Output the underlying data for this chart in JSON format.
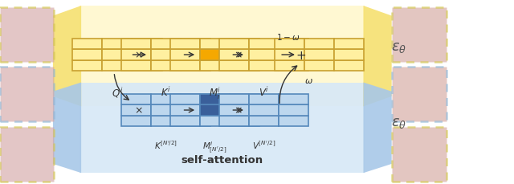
{
  "fig_width": 6.4,
  "fig_height": 2.3,
  "dpi": 100,
  "bg_color": "#ffffff",
  "yellow_bg_color": "#FFF8D0",
  "blue_bg_color": "#D6E8F7",
  "yellow_funnel_color": "#F5E070",
  "blue_funnel_color": "#A8C8E8",
  "grid_yellow_edge": "#C8A030",
  "grid_yellow_fill": "#FFF0A0",
  "grid_blue_edge": "#5588BB",
  "grid_blue_fill": "#BDD7EE",
  "grid_highlight_yellow": "#F5A800",
  "grid_highlight_blue": "#3A5F9A",
  "car_left_box_colors": [
    "#D4C850",
    "#90B8D8",
    "#D4C850"
  ],
  "car_right_box_colors": [
    "#D4C850",
    "#90B8D8",
    "#D4C850"
  ],
  "car_left_fill": "#D4A8A8",
  "car_right_fill": "#D4A8A0",
  "text_color": "#333333",
  "eps_color": "#555555"
}
